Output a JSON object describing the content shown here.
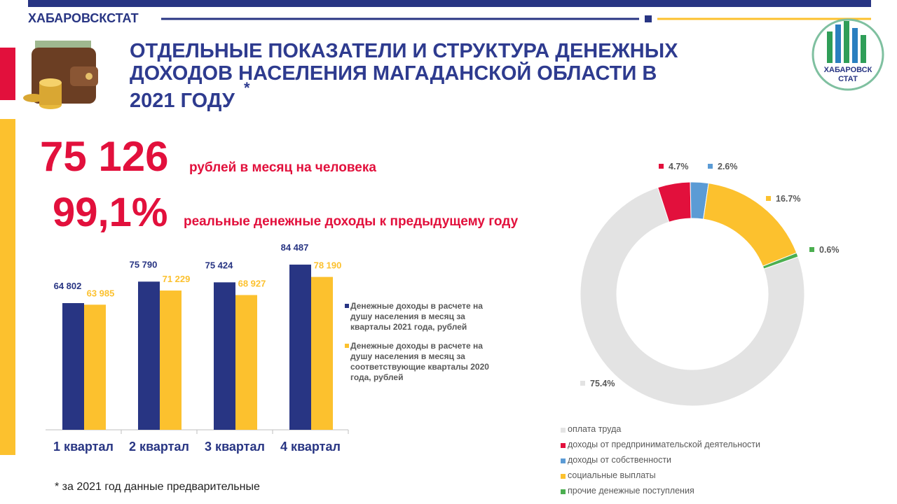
{
  "header": {
    "org": "ХАБАРОВСКСТАТ",
    "logo_lines": [
      "ХАБАРОВСК",
      "СТАТ"
    ]
  },
  "title": {
    "lines": [
      "ОТДЕЛЬНЫЕ ПОКАЗАТЕЛИ И СТРУКТУРА ДЕНЕЖНЫХ",
      "ДОХОДОВ НАСЕЛЕНИЯ МАГАДАНСКОЙ ОБЛАСТИ В",
      "2021 ГОДУ"
    ],
    "mark": "*"
  },
  "highlights": [
    {
      "value": "75 126",
      "text": "рублей в месяц на человека"
    },
    {
      "value": "99,1%",
      "text": "реальные денежные доходы к предыдущему году"
    }
  ],
  "footnote": "* за 2021 год данные предварительные",
  "chart_data": [
    {
      "type": "bar",
      "categories": [
        "1 квартал",
        "2 квартал",
        "3 квартал",
        "4 квартал"
      ],
      "series": [
        {
          "name": "Денежные доходы в расчете на душу населения в месяц за кварталы 2021 года, рублей",
          "color": "#283583",
          "values": [
            64802,
            75790,
            75424,
            84487
          ],
          "value_labels": [
            "64 802",
            "75 790",
            "75 424",
            "84 487"
          ]
        },
        {
          "name": "Денежные доходы в расчете на душу населения в месяц за соответствующие кварталы 2020 года, рублей",
          "color": "#fcc12e",
          "values": [
            63985,
            71229,
            68927,
            78190
          ],
          "value_labels": [
            "63 985",
            "71 229",
            "68 927",
            "78 190"
          ]
        }
      ]
    },
    {
      "type": "pie",
      "donut": true,
      "categories": [
        "оплата труда",
        "доходы от предпринимательской деятельности",
        "доходы от собственности",
        "социальные выплаты",
        "прочие денежные поступления"
      ],
      "values": [
        75.4,
        4.7,
        2.6,
        16.7,
        0.6
      ],
      "value_labels": [
        "75.4%",
        "4.7%",
        "2.6%",
        "16.7%",
        "0.6%"
      ],
      "colors": [
        "#e3e3e3",
        "#e2103c",
        "#5b9bd5",
        "#fcc12e",
        "#4caf50"
      ]
    }
  ]
}
